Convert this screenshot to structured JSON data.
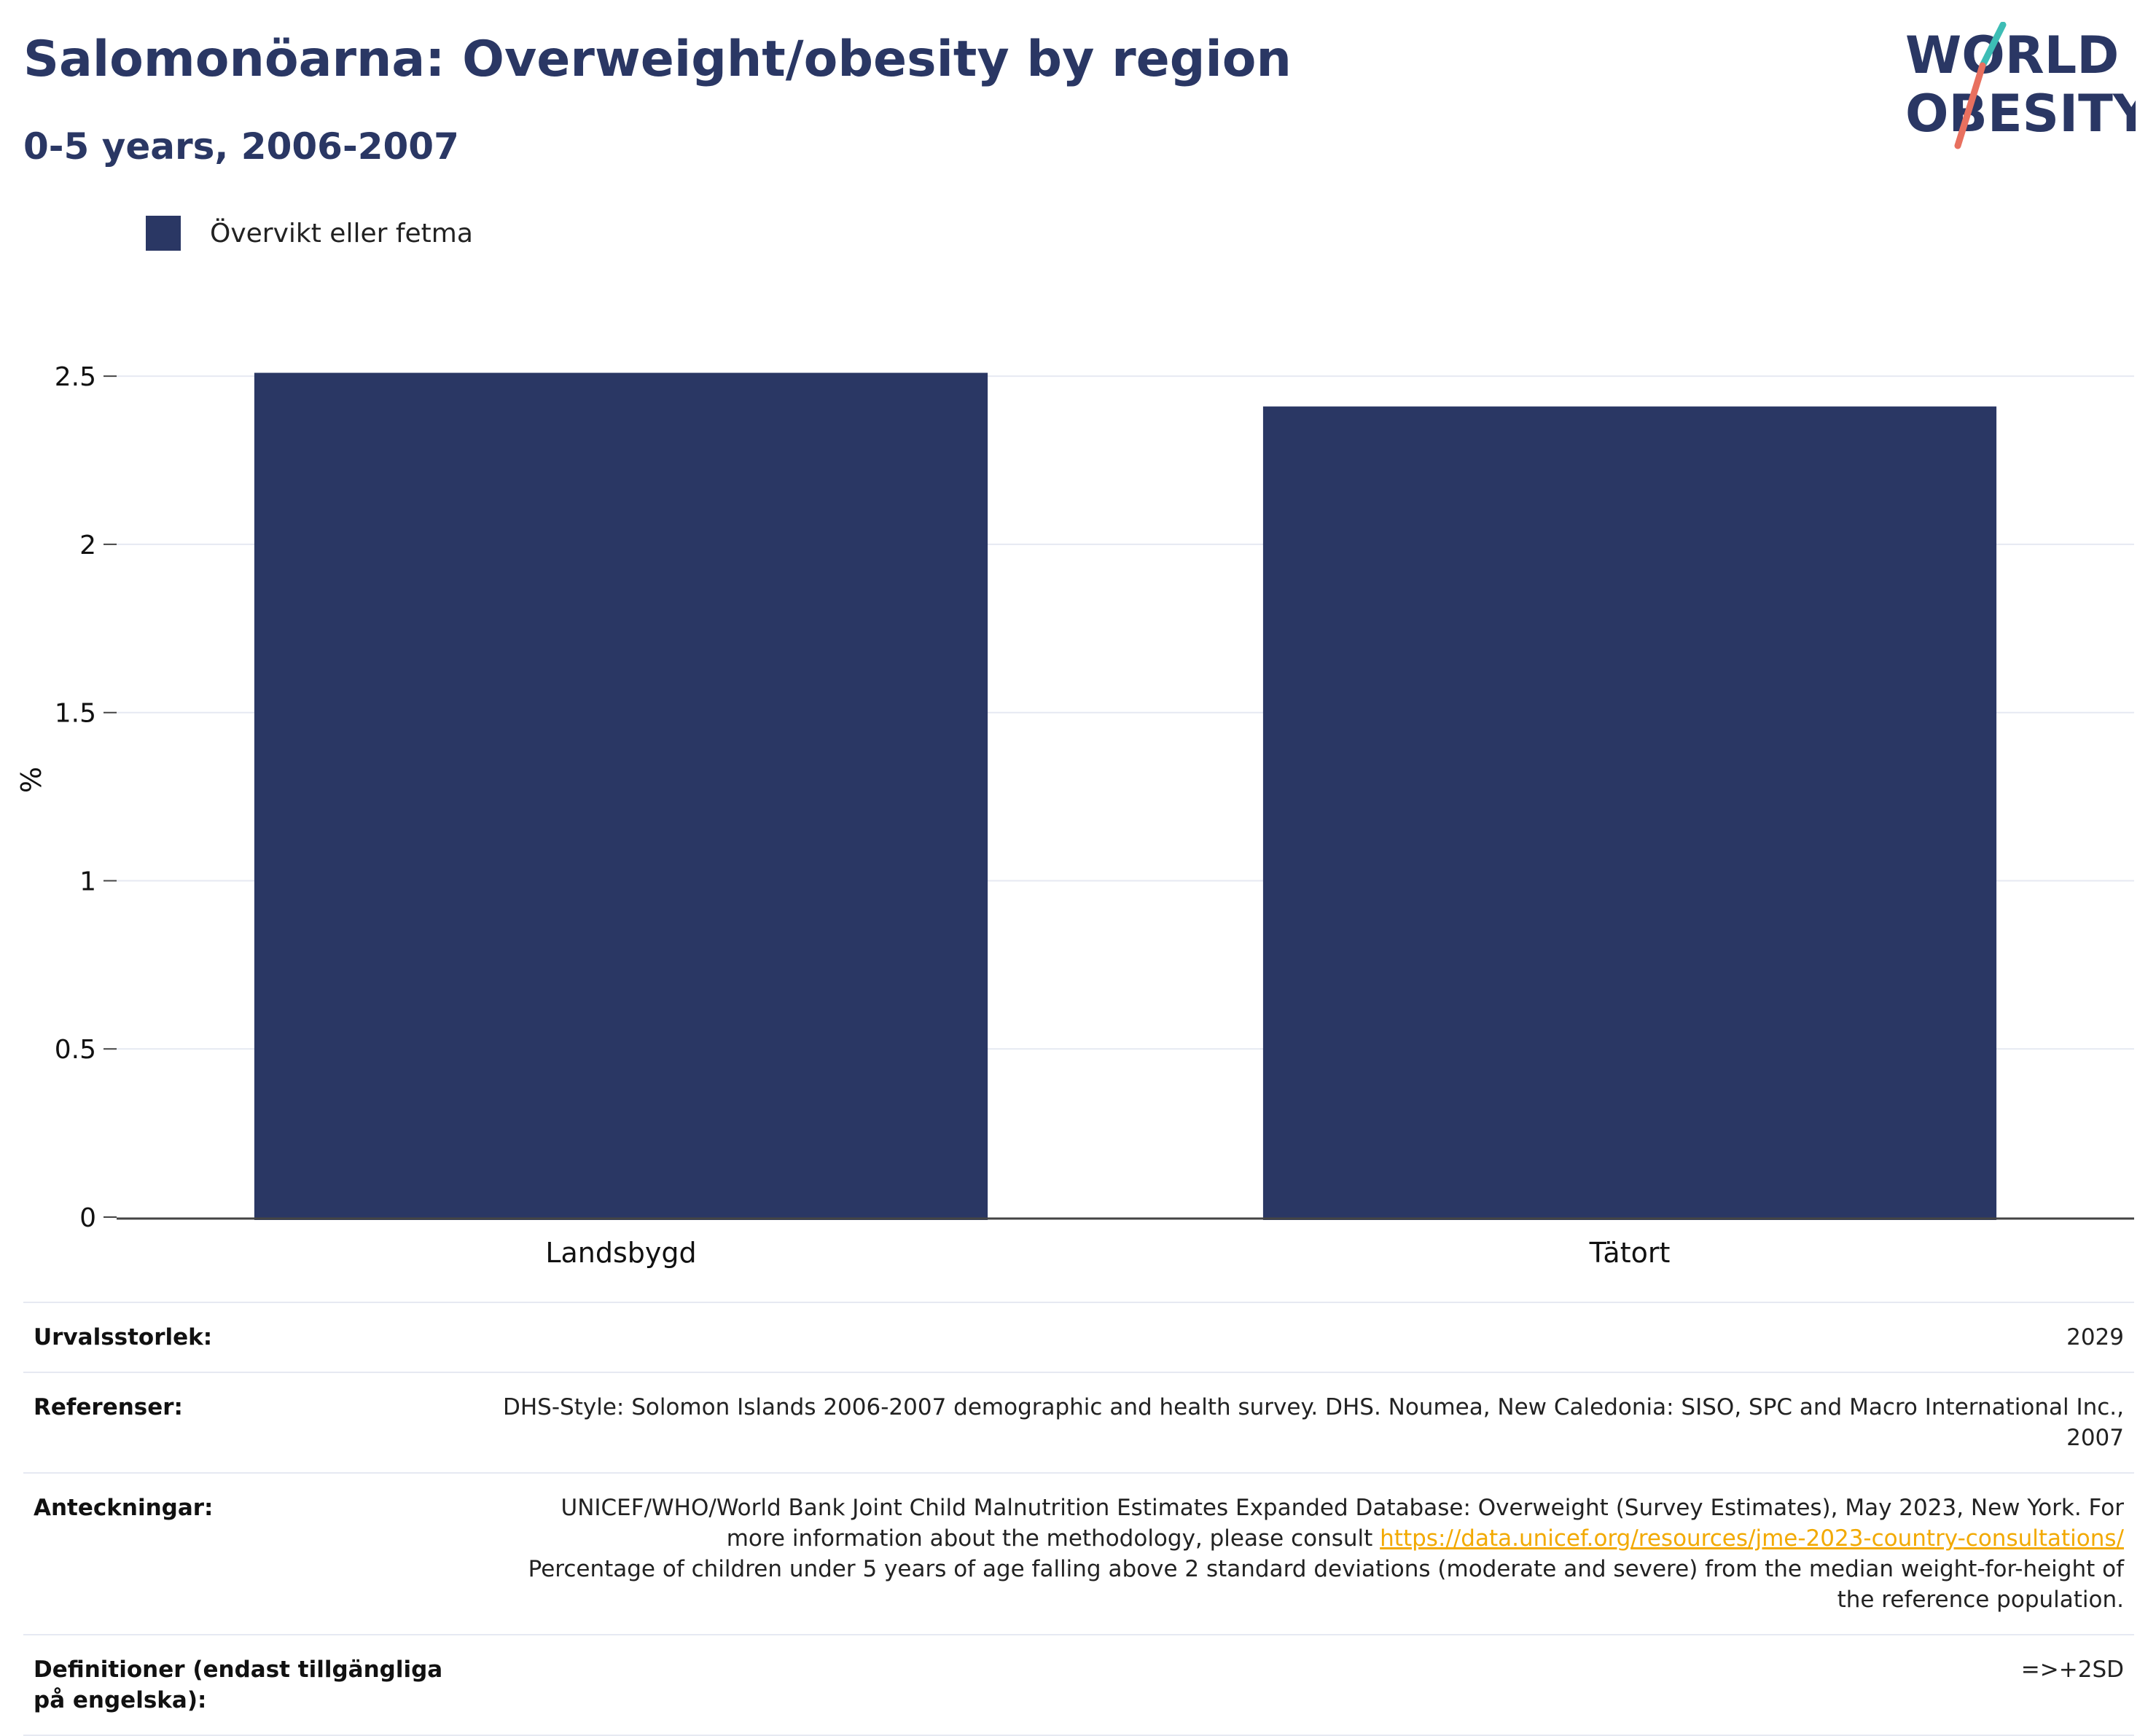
{
  "header": {
    "title": "Salomonöarna: Overweight/obesity by region",
    "subtitle": "0-5 years, 2006-2007"
  },
  "logo": {
    "line1": "WORLD",
    "line2": "OBESITY"
  },
  "legend": {
    "label": "Övervikt eller fetma"
  },
  "chart_data": {
    "type": "bar",
    "title": "Salomonöarna: Overweight/obesity by region",
    "subtitle": "0-5 years, 2006-2007",
    "categories": [
      "Landsbygd",
      "Tätort"
    ],
    "series": [
      {
        "name": "Övervikt eller fetma",
        "values": [
          2.51,
          2.41
        ],
        "color": "#2a3764"
      }
    ],
    "xlabel": "",
    "ylabel": "%",
    "ylim": [
      0,
      2.6
    ],
    "yticks": [
      0,
      0.5,
      1,
      1.5,
      2,
      2.5
    ],
    "ytick_labels": [
      "0",
      "0.5",
      "1",
      "1.5",
      "2",
      "2.5"
    ],
    "grid": true,
    "legend_position": "top-left"
  },
  "footer": {
    "sample_size": {
      "label": "Urvalsstorlek:",
      "value": "2029"
    },
    "references": {
      "label": "Referenser:",
      "value": "DHS-Style: Solomon Islands 2006-2007 demographic and health survey. DHS. Noumea, New Caledonia: SISO, SPC and Macro International Inc., 2007"
    },
    "notes": {
      "label": "Anteckningar:",
      "text_before": "UNICEF/WHO/World Bank Joint Child Malnutrition Estimates Expanded Database: Overweight (Survey Estimates), May 2023, New York. For more information about the methodology, please consult ",
      "link": "https://data.unicef.org/resources/jme-2023-country-consultations/",
      "text_after": "Percentage of children under 5 years of age falling above 2 standard deviations (moderate and severe) from the median weight-for-height of the reference population."
    },
    "definitions": {
      "label": "Definitioner (endast tillgängliga på engelska):",
      "value": "=>+2SD"
    }
  },
  "colors": {
    "bar": "#2a3764",
    "title": "#2a3764",
    "gridline": "#e6e9f2",
    "link": "#f2a900",
    "logo_teal": "#3dbdb5",
    "logo_coral": "#e8705f"
  }
}
